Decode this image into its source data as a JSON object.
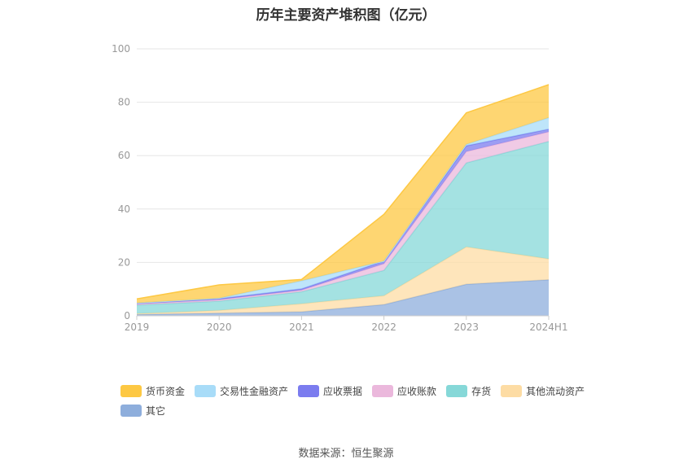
{
  "source_note": "数据来源：恒生聚源",
  "chart_data": {
    "type": "area",
    "stacked": true,
    "title": "历年主要资产堆积图（亿元）",
    "xlabel": "",
    "ylabel": "",
    "categories": [
      "2019",
      "2020",
      "2021",
      "2022",
      "2023",
      "2024H1"
    ],
    "ylim": [
      0,
      100
    ],
    "yticks": [
      0,
      20,
      40,
      60,
      80,
      100
    ],
    "grid": true,
    "legend_position": "bottom",
    "series": [
      {
        "name": "其它",
        "color": "#8eaedc",
        "values": [
          0.5,
          1.0,
          1.5,
          4.2,
          11.8,
          13.5
        ]
      },
      {
        "name": "其他流动资产",
        "color": "#fddca4",
        "values": [
          0.3,
          1.0,
          3.0,
          3.3,
          14.0,
          7.8
        ]
      },
      {
        "name": "存货",
        "color": "#86d8d8",
        "values": [
          3.2,
          3.5,
          4.5,
          9.5,
          31.5,
          44.0
        ]
      },
      {
        "name": "应收账款",
        "color": "#ebb8dc",
        "values": [
          0.4,
          0.5,
          0.6,
          2.5,
          4.2,
          3.6
        ]
      },
      {
        "name": "应收票据",
        "color": "#7b7cef",
        "values": [
          0.4,
          0.4,
          0.5,
          1.0,
          2.2,
          1.0
        ]
      },
      {
        "name": "交易性金融资产",
        "color": "#a8dcf8",
        "values": [
          0.0,
          0.2,
          3.0,
          0.0,
          0.5,
          4.3
        ]
      },
      {
        "name": "货币资金",
        "color": "#fdc843",
        "values": [
          1.5,
          5.0,
          0.5,
          17.5,
          11.8,
          12.4
        ]
      }
    ],
    "legend_order": [
      "货币资金",
      "交易性金融资产",
      "应收票据",
      "应收账款",
      "存货",
      "其他流动资产",
      "其它"
    ]
  }
}
